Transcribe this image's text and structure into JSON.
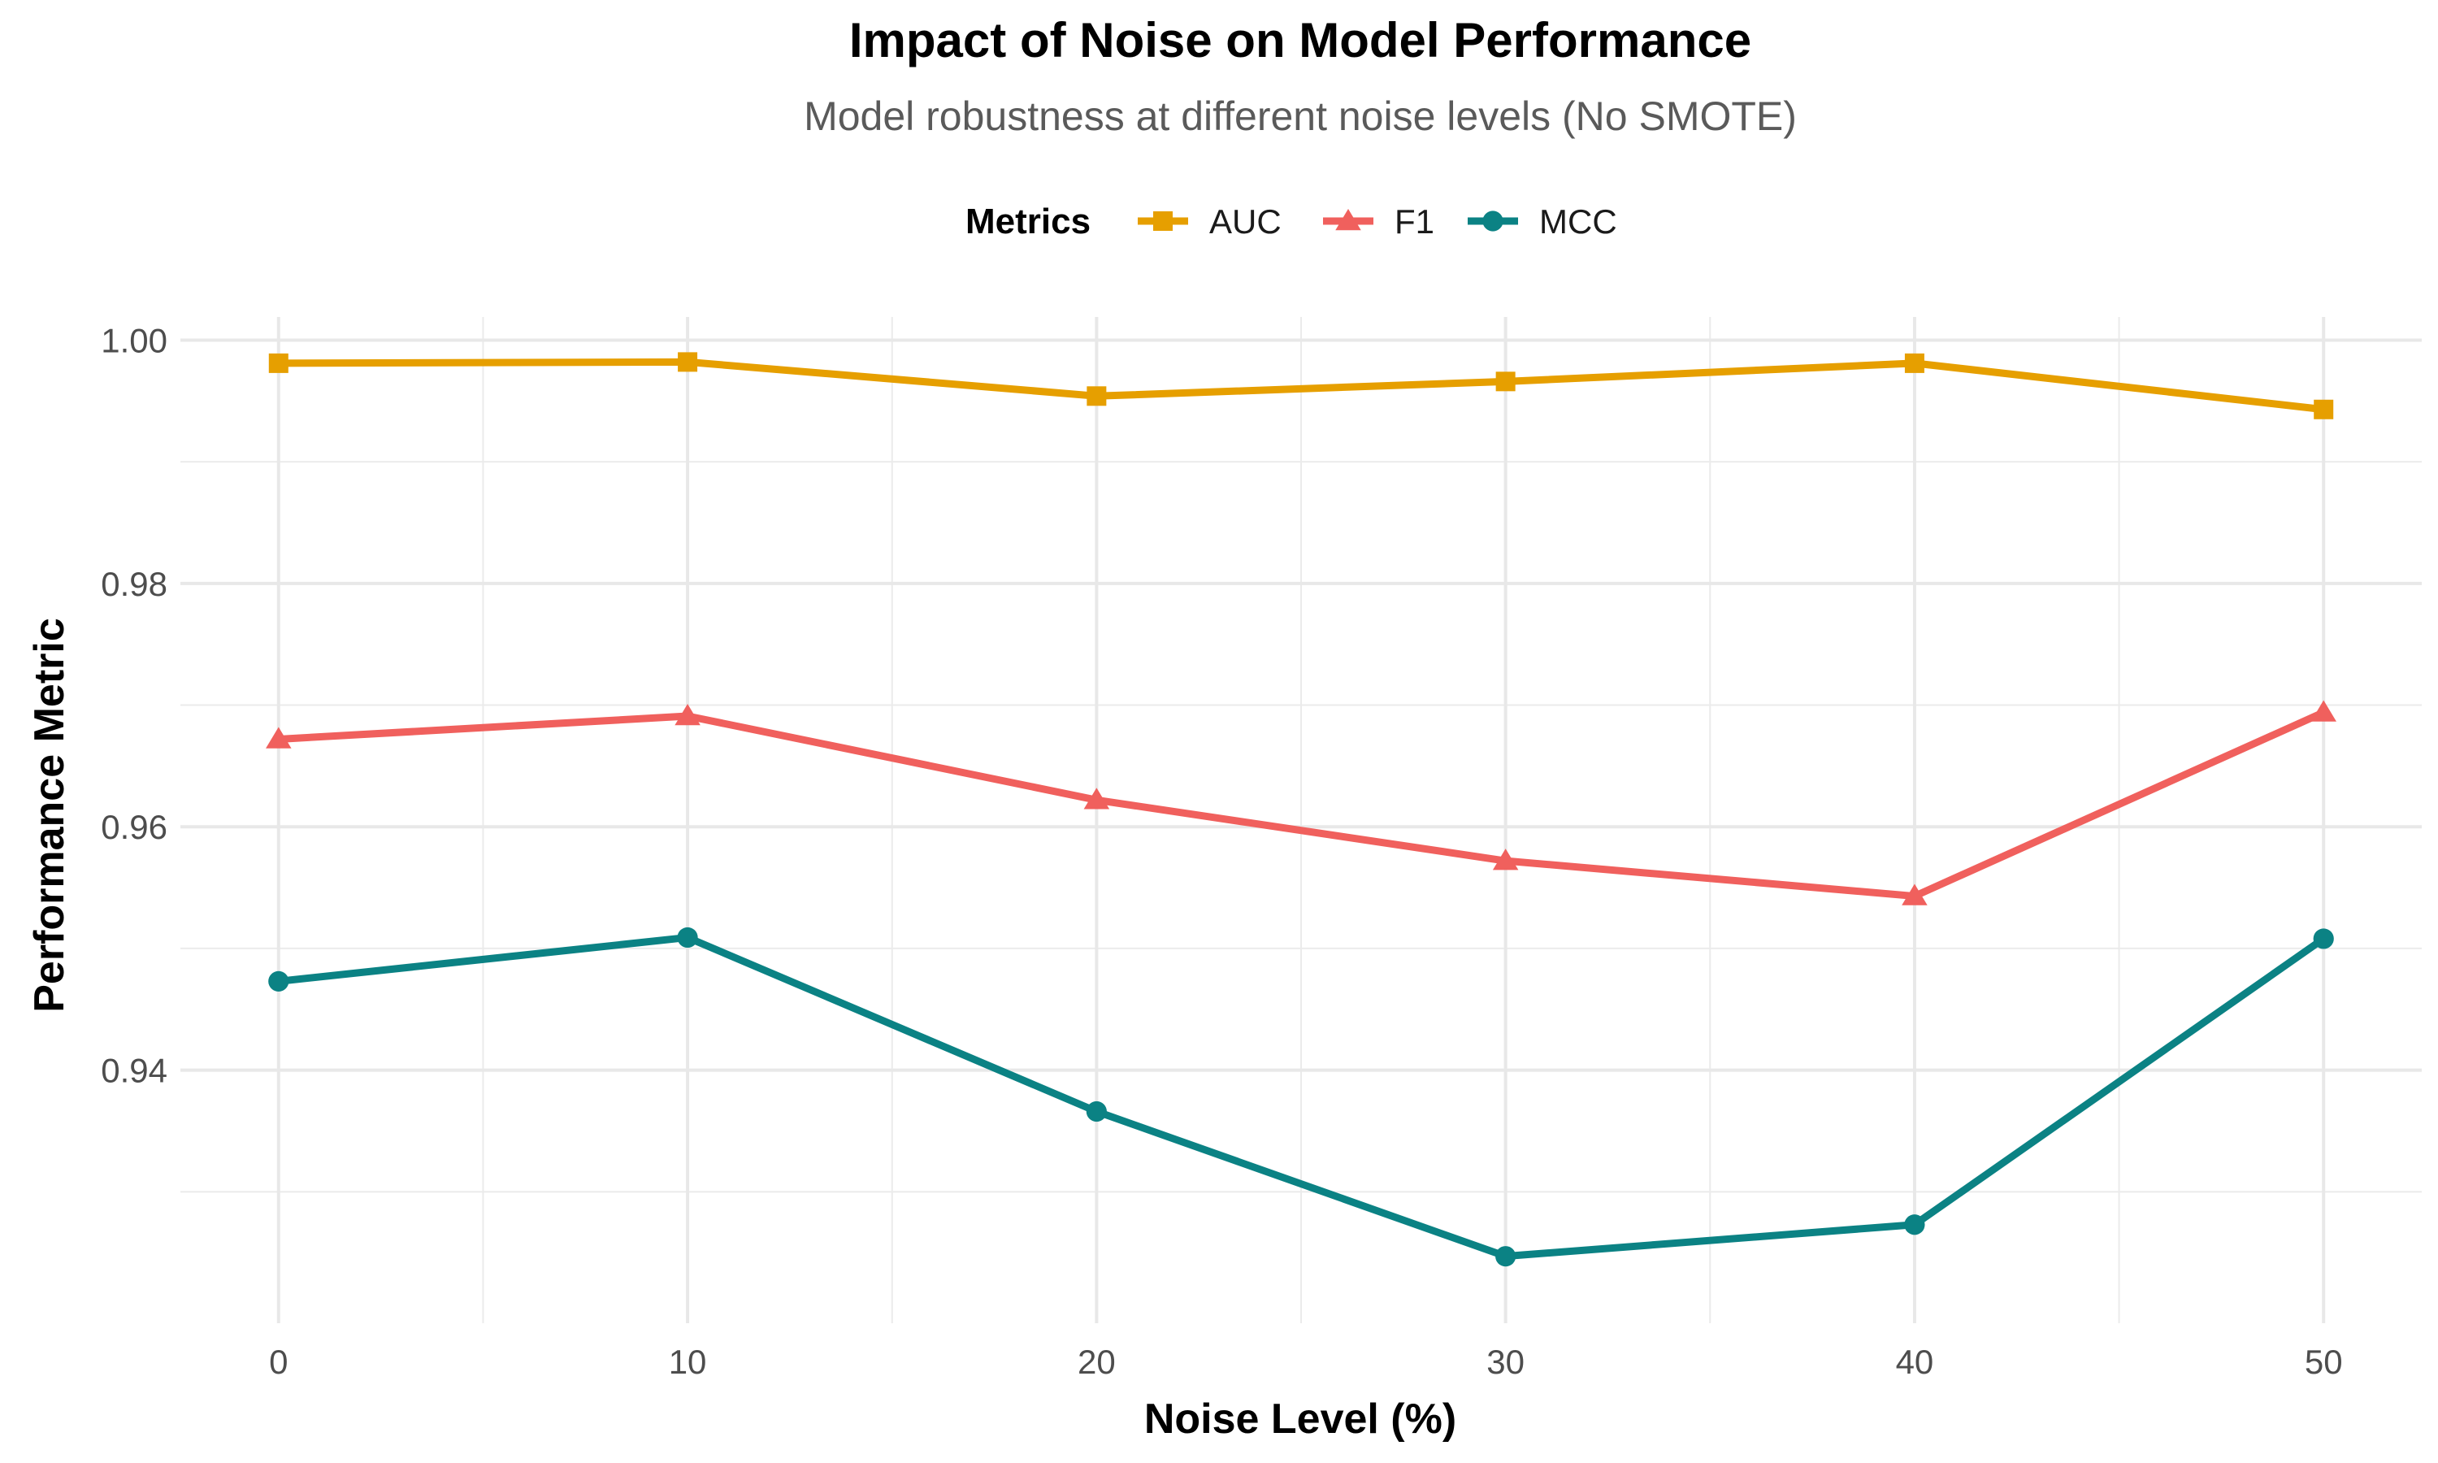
{
  "chart_data": {
    "type": "line",
    "title": "Impact of Noise on Model Performance",
    "subtitle": "Model robustness at different noise levels (No SMOTE)",
    "xlabel": "Noise Level (%)",
    "ylabel": "Performance Metric",
    "x": [
      0,
      10,
      20,
      30,
      40,
      50
    ],
    "x_ticks": [
      "0",
      "10",
      "20",
      "30",
      "40",
      "50"
    ],
    "y_ticks": [
      "0.94",
      "0.96",
      "0.98",
      "1.00"
    ],
    "xlim": [
      -2.4,
      52.4
    ],
    "ylim": [
      0.9192,
      1.0019
    ],
    "grid": true,
    "legend": {
      "title": "Metrics",
      "placement": "top"
    },
    "series": [
      {
        "name": "AUC",
        "color": "#E69F00",
        "marker": "square",
        "values": [
          0.9981,
          0.9982,
          0.9954,
          0.9966,
          0.9981,
          0.9943
        ]
      },
      {
        "name": "F1",
        "color": "#F0605D",
        "marker": "triangle",
        "values": [
          0.9672,
          0.9691,
          0.9622,
          0.9572,
          0.9543,
          0.9694
        ]
      },
      {
        "name": "MCC",
        "color": "#0B8284",
        "marker": "circle",
        "values": [
          0.9473,
          0.9509,
          0.9366,
          0.9247,
          0.9273,
          0.9508
        ]
      }
    ]
  }
}
